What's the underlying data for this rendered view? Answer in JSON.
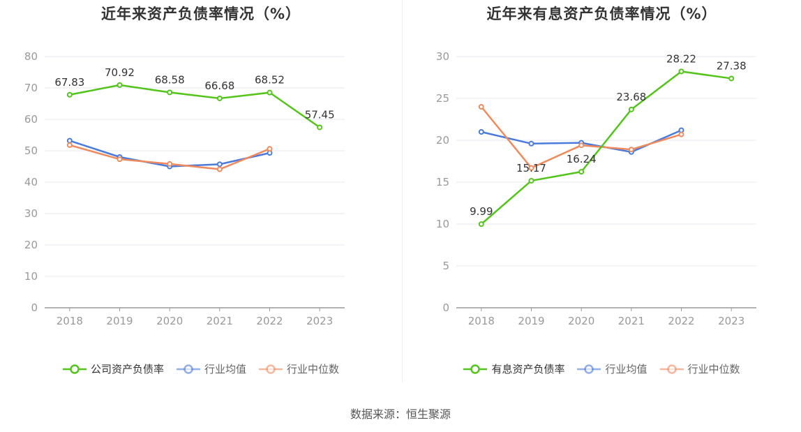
{
  "source_text": "数据来源：恒生聚源",
  "chart_data": [
    {
      "type": "line",
      "title": "近年来资产负债率情况（%）",
      "categories": [
        "2018",
        "2019",
        "2020",
        "2021",
        "2022",
        "2023"
      ],
      "ylim": [
        0,
        80
      ],
      "yticks": [
        "0",
        "10",
        "20",
        "30",
        "40",
        "50",
        "60",
        "70",
        "80"
      ],
      "grid": true,
      "legend_position": "bottom",
      "series": [
        {
          "name": "公司资产负债率",
          "color": "#52c41a",
          "labels": [
            "67.83",
            "70.92",
            "68.58",
            "66.68",
            "68.52",
            "57.45"
          ],
          "values": [
            67.83,
            70.92,
            68.58,
            66.68,
            68.52,
            57.45
          ]
        },
        {
          "name": "行业均值",
          "color": "#4a7bdc",
          "values": [
            53.2,
            48.0,
            45.0,
            45.7,
            49.3,
            null
          ]
        },
        {
          "name": "行业中位数",
          "color": "#f08a5d",
          "values": [
            51.8,
            47.3,
            45.8,
            44.1,
            50.6,
            null
          ]
        }
      ]
    },
    {
      "type": "line",
      "title": "近年来有息资产负债率情况（%）",
      "categories": [
        "2018",
        "2019",
        "2020",
        "2021",
        "2022",
        "2023"
      ],
      "ylim": [
        0,
        30
      ],
      "yticks": [
        "0",
        "5",
        "10",
        "15",
        "20",
        "25",
        "30"
      ],
      "grid": true,
      "legend_position": "bottom",
      "series": [
        {
          "name": "有息资产负债率",
          "color": "#52c41a",
          "labels": [
            "9.99",
            "15.17",
            "16.24",
            "23.68",
            "28.22",
            "27.38"
          ],
          "values": [
            9.99,
            15.17,
            16.24,
            23.68,
            28.22,
            27.38
          ]
        },
        {
          "name": "行业均值",
          "color": "#4a7bdc",
          "values": [
            21.0,
            19.6,
            19.7,
            18.6,
            21.2,
            null
          ]
        },
        {
          "name": "行业中位数",
          "color": "#f08a5d",
          "values": [
            24.0,
            16.7,
            19.4,
            18.9,
            20.7,
            null
          ]
        }
      ]
    }
  ]
}
